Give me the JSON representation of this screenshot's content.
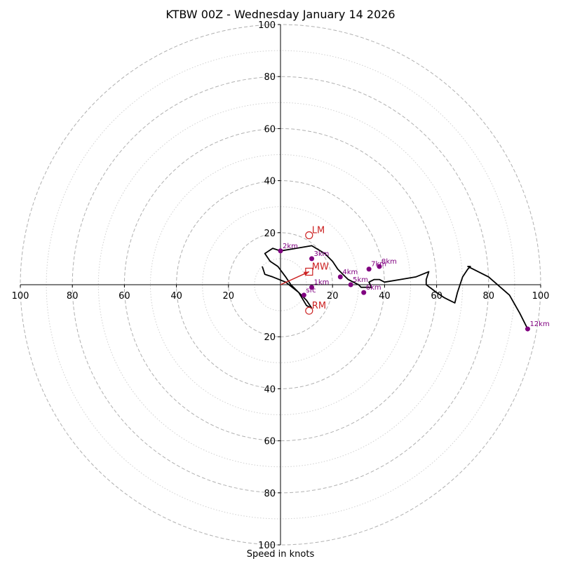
{
  "chart_data": {
    "type": "hodograph",
    "title": "KTBW 00Z - Wednesday January 14 2026",
    "xlabel": "Speed in knots",
    "ring_labels": [
      "20",
      "40",
      "60",
      "80",
      "100"
    ],
    "rings_major": [
      20,
      40,
      60,
      80,
      100
    ],
    "rings_minor": [
      10,
      30,
      50,
      70,
      90
    ],
    "max_speed": 100,
    "hodograph": [
      [
        -7,
        7
      ],
      [
        -6,
        4
      ],
      [
        -3,
        3
      ],
      [
        2,
        1
      ],
      [
        7,
        -3
      ],
      [
        10,
        -6
      ],
      [
        12,
        -9
      ],
      [
        10,
        -8
      ],
      [
        7,
        -3
      ],
      [
        4,
        0
      ],
      [
        2,
        3
      ],
      [
        -1,
        7
      ],
      [
        -4,
        9
      ],
      [
        -6,
        12
      ],
      [
        -3,
        14
      ],
      [
        0,
        13
      ],
      [
        6,
        14
      ],
      [
        12,
        15
      ],
      [
        17,
        12
      ],
      [
        20,
        9
      ],
      [
        22,
        6
      ],
      [
        24,
        4
      ],
      [
        26,
        2
      ],
      [
        28,
        1
      ],
      [
        30,
        0
      ],
      [
        31,
        -1
      ],
      [
        33,
        -1
      ],
      [
        35,
        -1
      ],
      [
        34,
        1
      ],
      [
        36,
        2
      ],
      [
        38,
        2
      ],
      [
        40,
        1
      ],
      [
        46,
        2
      ],
      [
        52,
        3
      ],
      [
        57,
        5
      ],
      [
        56,
        2
      ],
      [
        56,
        0
      ],
      [
        60,
        -3
      ],
      [
        63,
        -5
      ],
      [
        65,
        -6
      ],
      [
        67,
        -7
      ],
      [
        68,
        -3
      ],
      [
        70,
        3
      ],
      [
        72,
        6
      ],
      [
        73,
        7
      ],
      [
        72,
        7
      ],
      [
        74,
        6
      ],
      [
        80,
        3
      ],
      [
        88,
        -4
      ],
      [
        92,
        -11
      ],
      [
        95,
        -17
      ]
    ],
    "height_markers": [
      {
        "label": "sfc",
        "u": 9,
        "v": -4
      },
      {
        "label": "1km",
        "u": 12,
        "v": -1
      },
      {
        "label": "2km",
        "u": 0,
        "v": 13
      },
      {
        "label": "3km",
        "u": 12,
        "v": 10
      },
      {
        "label": "4km",
        "u": 23,
        "v": 3
      },
      {
        "label": "5km",
        "u": 27,
        "v": 0
      },
      {
        "label": "6km",
        "u": 32,
        "v": -3
      },
      {
        "label": "7km",
        "u": 34,
        "v": 6
      },
      {
        "label": "8km",
        "u": 38,
        "v": 7
      },
      {
        "label": "12km",
        "u": 95,
        "v": -17
      }
    ],
    "storm_motions": [
      {
        "label": "LM",
        "u": 11,
        "v": 19,
        "marker": "circle"
      },
      {
        "label": "MW",
        "u": 11,
        "v": 5,
        "marker": "square"
      },
      {
        "label": "RM",
        "u": 11,
        "v": -10,
        "marker": "circle"
      }
    ],
    "bunkers_vector": {
      "u": 11,
      "v": 5
    },
    "colors": {
      "grid": "#b0b0b0",
      "hodograph": "#000000",
      "height_marker": "#800080",
      "storm_motion": "#cc2222"
    }
  }
}
